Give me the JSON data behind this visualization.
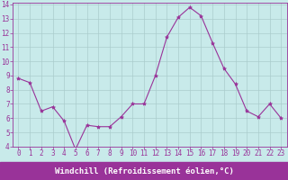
{
  "x": [
    0,
    1,
    2,
    3,
    4,
    5,
    6,
    7,
    8,
    9,
    10,
    11,
    12,
    13,
    14,
    15,
    16,
    17,
    18,
    19,
    20,
    21,
    22,
    23
  ],
  "y": [
    8.8,
    8.5,
    6.5,
    6.8,
    5.8,
    3.8,
    5.5,
    5.4,
    5.4,
    6.1,
    7.0,
    7.0,
    9.0,
    11.7,
    13.1,
    13.8,
    13.2,
    11.3,
    9.5,
    8.4,
    6.5,
    6.1,
    7.0,
    6.0
  ],
  "line_color": "#993399",
  "marker": "*",
  "marker_size": 3,
  "background_color": "#c8eaea",
  "grid_color": "#aacccc",
  "xlabel": "Windchill (Refroidissement éolien,°C)",
  "xlabel_fontsize": 6.5,
  "xlabel_color": "#993399",
  "ylim": [
    4,
    14
  ],
  "xlim": [
    -0.5,
    23.5
  ],
  "yticks": [
    4,
    5,
    6,
    7,
    8,
    9,
    10,
    11,
    12,
    13,
    14
  ],
  "xticks": [
    0,
    1,
    2,
    3,
    4,
    5,
    6,
    7,
    8,
    9,
    10,
    11,
    12,
    13,
    14,
    15,
    16,
    17,
    18,
    19,
    20,
    21,
    22,
    23
  ],
  "tick_fontsize": 5.5,
  "tick_color": "#993399",
  "spine_color": "#993399",
  "xlabel_bg": "#993399",
  "xlabel_text_color": "#ffffff",
  "axis_bg": "#c8eaea"
}
